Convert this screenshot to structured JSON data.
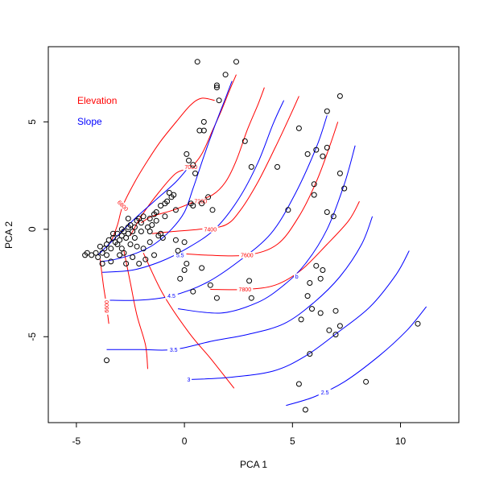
{
  "chart_data": {
    "type": "scatter",
    "title": "",
    "xlabel": "PCA 1",
    "ylabel": "PCA 2",
    "xlim": [
      -6.3,
      12.7
    ],
    "ylim": [
      -9,
      8.5
    ],
    "xticks": [
      -5,
      0,
      5,
      10
    ],
    "yticks": [
      -5,
      0,
      5
    ],
    "legend": {
      "position": "top-left",
      "entries": [
        {
          "label": "Elevation",
          "color": "#ff0000"
        },
        {
          "label": "Slope",
          "color": "#0000ff"
        }
      ]
    },
    "points": [
      [
        0.6,
        7.8
      ],
      [
        2.4,
        7.8
      ],
      [
        1.9,
        7.2
      ],
      [
        1.5,
        6.7
      ],
      [
        1.5,
        6.6
      ],
      [
        1.6,
        6.0
      ],
      [
        0.9,
        5.0
      ],
      [
        0.7,
        4.6
      ],
      [
        0.9,
        4.6
      ],
      [
        2.8,
        4.1
      ],
      [
        0.1,
        3.5
      ],
      [
        0.2,
        3.2
      ],
      [
        0.4,
        3.0
      ],
      [
        3.1,
        2.9
      ],
      [
        0.5,
        2.6
      ],
      [
        -0.5,
        1.6
      ],
      [
        0.4,
        1.1
      ],
      [
        0.8,
        1.2
      ],
      [
        1.1,
        1.5
      ],
      [
        1.3,
        0.9
      ],
      [
        -0.7,
        1.7
      ],
      [
        -0.9,
        1.2
      ],
      [
        -1.1,
        1.1
      ],
      [
        -0.9,
        0.6
      ],
      [
        -1.4,
        0.7
      ],
      [
        -0.4,
        0.9
      ],
      [
        -1.3,
        0.4
      ],
      [
        -1.5,
        0.2
      ],
      [
        -1.6,
        -0.1
      ],
      [
        -1.9,
        0.6
      ],
      [
        -2.0,
        0.3
      ],
      [
        -2.2,
        0.4
      ],
      [
        -2.3,
        0.1
      ],
      [
        -2.5,
        0.2
      ],
      [
        -2.6,
        0.1
      ],
      [
        -2.6,
        -0.2
      ],
      [
        -2.8,
        -0.1
      ],
      [
        -2.9,
        -0.3
      ],
      [
        -3.0,
        -0.5
      ],
      [
        -3.2,
        -0.6
      ],
      [
        -3.3,
        -0.4
      ],
      [
        -3.1,
        -0.7
      ],
      [
        -3.4,
        -0.9
      ],
      [
        -3.6,
        -0.7
      ],
      [
        -3.7,
        -0.9
      ],
      [
        -3.8,
        -1.1
      ],
      [
        -4.1,
        -1.1
      ],
      [
        -4.3,
        -1.2
      ],
      [
        -4.5,
        -1.1
      ],
      [
        -4.6,
        -1.2
      ],
      [
        -3.8,
        -1.6
      ],
      [
        -3.4,
        -1.5
      ],
      [
        -3.0,
        -1.2
      ],
      [
        -2.8,
        -1.1
      ],
      [
        -2.7,
        -1.6
      ],
      [
        -2.4,
        -1.3
      ],
      [
        -2.1,
        -1.6
      ],
      [
        -1.8,
        -1.4
      ],
      [
        -1.4,
        -1.2
      ],
      [
        -1.6,
        -0.6
      ],
      [
        -1.1,
        -0.2
      ],
      [
        -1.2,
        -0.3
      ],
      [
        -0.4,
        -0.5
      ],
      [
        0.0,
        -0.6
      ],
      [
        -0.3,
        -1.0
      ],
      [
        0.1,
        -1.6
      ],
      [
        0.0,
        -1.9
      ],
      [
        0.8,
        -1.8
      ],
      [
        -0.2,
        -2.3
      ],
      [
        0.4,
        -2.9
      ],
      [
        1.2,
        -2.6
      ],
      [
        1.5,
        -3.2
      ],
      [
        3.1,
        -3.2
      ],
      [
        3.0,
        -2.4
      ],
      [
        -3.6,
        -6.1
      ],
      [
        -2.1,
        0.5
      ],
      [
        -2.3,
        -0.4
      ],
      [
        -2.5,
        -0.7
      ],
      [
        -2.9,
        -0.9
      ],
      [
        -3.3,
        -0.2
      ],
      [
        -3.5,
        -0.5
      ],
      [
        -2.0,
        -0.1
      ],
      [
        -1.7,
        0.1
      ],
      [
        -2.2,
        -0.8
      ],
      [
        -1.9,
        -0.9
      ],
      [
        -4.0,
        -1.3
      ],
      [
        -3.9,
        -0.8
      ],
      [
        -2.7,
        -0.4
      ],
      [
        -2.4,
        -0.1
      ],
      [
        -2.9,
        0.0
      ],
      [
        -1.6,
        0.5
      ],
      [
        -2.6,
        0.5
      ],
      [
        -1.3,
        0.8
      ],
      [
        -0.8,
        1.3
      ],
      [
        -0.6,
        1.5
      ],
      [
        0.3,
        1.2
      ],
      [
        -3.1,
        -0.2
      ],
      [
        -3.6,
        -1.2
      ],
      [
        -1.0,
        -0.4
      ],
      [
        4.8,
        0.9
      ],
      [
        4.3,
        2.9
      ],
      [
        5.3,
        4.7
      ],
      [
        5.7,
        3.5
      ],
      [
        6.1,
        3.7
      ],
      [
        6.4,
        3.4
      ],
      [
        6.6,
        3.8
      ],
      [
        6.6,
        5.5
      ],
      [
        7.2,
        6.2
      ],
      [
        7.2,
        2.6
      ],
      [
        7.4,
        1.9
      ],
      [
        6.6,
        0.8
      ],
      [
        6.9,
        0.6
      ],
      [
        6.0,
        2.1
      ],
      [
        6.0,
        1.6
      ],
      [
        6.1,
        -1.7
      ],
      [
        6.4,
        -1.9
      ],
      [
        6.3,
        -2.3
      ],
      [
        5.8,
        -2.5
      ],
      [
        5.7,
        -3.1
      ],
      [
        5.4,
        -4.2
      ],
      [
        5.9,
        -3.7
      ],
      [
        6.3,
        -3.9
      ],
      [
        7.0,
        -3.8
      ],
      [
        7.2,
        -4.5
      ],
      [
        7.0,
        -4.9
      ],
      [
        6.7,
        -4.7
      ],
      [
        5.8,
        -5.8
      ],
      [
        5.3,
        -7.2
      ],
      [
        5.6,
        -8.4
      ],
      [
        8.4,
        -7.1
      ],
      [
        10.8,
        -4.4
      ]
    ],
    "series": [
      {
        "name": "Elevation",
        "color": "#ff0000",
        "contours": [
          {
            "level": "6600",
            "label_at": [
              -3.6,
              -3.6
            ],
            "label_angle": -90,
            "points": [
              [
                -3.9,
                -1.4
              ],
              [
                -3.75,
                -2.6
              ],
              [
                -3.6,
                -3.6
              ],
              [
                -3.5,
                -4.4
              ]
            ]
          },
          {
            "level": "6800",
            "label_at": [
              -2.85,
              1.1
            ],
            "label_angle": 45,
            "points": [
              [
                -3.4,
                -0.6
              ],
              [
                -3.1,
                0.2
              ],
              [
                -2.85,
                1.1
              ],
              [
                -2.3,
                2.2
              ],
              [
                -1.7,
                3.2
              ],
              [
                -1.1,
                4.1
              ],
              [
                -0.3,
                5.1
              ],
              [
                0.3,
                5.8
              ],
              [
                0.8,
                6.1
              ],
              [
                1.4,
                6.0
              ]
            ]
          },
          {
            "level": "",
            "label_at": null,
            "label_angle": 0,
            "points": [
              [
                -2.8,
                -1.0
              ],
              [
                -2.5,
                -2.5
              ],
              [
                -2.2,
                -4.0
              ],
              [
                -1.8,
                -5.4
              ],
              [
                -1.7,
                -6.5
              ]
            ]
          },
          {
            "level": "7000",
            "label_at": [
              0.3,
              2.9
            ],
            "label_angle": 0,
            "points": [
              [
                -2.5,
                -0.3
              ],
              [
                -2.0,
                0.6
              ],
              [
                -1.2,
                1.7
              ],
              [
                -0.4,
                2.6
              ],
              [
                0.3,
                2.9
              ],
              [
                0.8,
                3.5
              ],
              [
                1.3,
                4.6
              ],
              [
                1.7,
                5.5
              ],
              [
                2.1,
                6.5
              ],
              [
                2.4,
                7.2
              ]
            ]
          },
          {
            "level": "",
            "label_at": null,
            "label_angle": 0,
            "points": [
              [
                -1.9,
                -1.1
              ],
              [
                -1.0,
                -3.0
              ],
              [
                0.2,
                -4.8
              ],
              [
                1.2,
                -6.0
              ],
              [
                2.3,
                -7.4
              ]
            ]
          },
          {
            "level": "7200",
            "label_at": [
              0.75,
              1.3
            ],
            "label_angle": 0,
            "points": [
              [
                -2.0,
                0.3
              ],
              [
                -1.5,
                0.6
              ],
              [
                -0.5,
                0.9
              ],
              [
                0.5,
                1.3
              ],
              [
                1.3,
                1.6
              ],
              [
                1.9,
                2.2
              ],
              [
                2.4,
                3.2
              ],
              [
                2.9,
                4.6
              ],
              [
                3.4,
                5.8
              ],
              [
                3.7,
                6.6
              ]
            ]
          },
          {
            "level": "7400",
            "label_at": [
              1.2,
              0.0
            ],
            "label_angle": 0,
            "points": [
              [
                -1.5,
                -0.2
              ],
              [
                -0.5,
                -0.1
              ],
              [
                0.7,
                0.0
              ],
              [
                1.9,
                0.2
              ],
              [
                2.6,
                0.9
              ],
              [
                3.4,
                2.2
              ],
              [
                4.2,
                3.8
              ],
              [
                4.9,
                5.3
              ],
              [
                5.3,
                6.2
              ]
            ]
          },
          {
            "level": "7600",
            "label_at": [
              2.9,
              -1.2
            ],
            "label_angle": 0,
            "points": [
              [
                -0.5,
                -1.1
              ],
              [
                1.0,
                -1.2
              ],
              [
                2.9,
                -1.2
              ],
              [
                4.3,
                -0.7
              ],
              [
                5.3,
                0.6
              ],
              [
                6.1,
                2.2
              ],
              [
                6.7,
                3.8
              ],
              [
                7.1,
                5.0
              ]
            ]
          },
          {
            "level": "7800",
            "label_at": [
              2.8,
              -2.8
            ],
            "label_angle": 0,
            "points": [
              [
                1.2,
                -2.8
              ],
              [
                2.8,
                -2.8
              ],
              [
                4.2,
                -2.6
              ],
              [
                5.4,
                -1.9
              ],
              [
                6.6,
                -0.7
              ],
              [
                7.6,
                0.4
              ],
              [
                8.1,
                1.3
              ]
            ]
          }
        ]
      },
      {
        "name": "Slope",
        "color": "#0000ff",
        "contours": [
          {
            "level": "",
            "label_at": null,
            "label_angle": 0,
            "points": [
              [
                -4.0,
                -1.2
              ],
              [
                -3.3,
                -0.5
              ],
              [
                -2.4,
                0.4
              ],
              [
                -1.4,
                1.3
              ],
              [
                -0.4,
                2.2
              ],
              [
                0.2,
                2.9
              ]
            ]
          },
          {
            "level": "",
            "label_at": null,
            "label_angle": 0,
            "points": [
              [
                -3.9,
                -1.5
              ],
              [
                -3.2,
                -1.4
              ],
              [
                -2.2,
                -1.1
              ],
              [
                -1.4,
                -0.7
              ],
              [
                -0.6,
                0.0
              ],
              [
                0.0,
                0.8
              ],
              [
                0.4,
                1.9
              ],
              [
                0.9,
                3.4
              ],
              [
                1.4,
                4.8
              ],
              [
                1.9,
                6.1
              ],
              [
                2.2,
                6.9
              ]
            ]
          },
          {
            "level": "5.5",
            "label_at": [
              -0.2,
              -1.2
            ],
            "label_angle": 0,
            "points": [
              [
                -3.8,
                -2.0
              ],
              [
                -2.4,
                -1.9
              ],
              [
                -1.1,
                -1.5
              ],
              [
                0.1,
                -0.9
              ],
              [
                1.4,
                0.0
              ],
              [
                2.5,
                1.4
              ],
              [
                3.4,
                3.1
              ],
              [
                4.1,
                4.9
              ],
              [
                4.6,
                6.0
              ]
            ]
          },
          {
            "level": "4.5",
            "label_at": [
              -0.6,
              -3.1
            ],
            "label_angle": 0,
            "points": [
              [
                -3.6,
                -3.3
              ],
              [
                -2.1,
                -3.3
              ],
              [
                -0.6,
                -3.1
              ],
              [
                1.0,
                -2.5
              ],
              [
                2.5,
                -1.5
              ],
              [
                4.0,
                -0.2
              ],
              [
                5.1,
                1.6
              ],
              [
                6.1,
                3.8
              ],
              [
                6.6,
                5.3
              ]
            ]
          },
          {
            "level": "b",
            "label_at": [
              5.2,
              -2.2
            ],
            "label_angle": 0,
            "points": [
              [
                -0.3,
                -3.7
              ],
              [
                1.7,
                -3.9
              ],
              [
                3.4,
                -3.4
              ],
              [
                4.6,
                -2.6
              ],
              [
                5.6,
                -1.6
              ],
              [
                6.6,
                0.0
              ],
              [
                7.4,
                2.1
              ],
              [
                7.9,
                3.9
              ]
            ]
          },
          {
            "level": "3.5",
            "label_at": [
              -0.5,
              -5.6
            ],
            "label_angle": 0,
            "points": [
              [
                -3.6,
                -5.6
              ],
              [
                -2.0,
                -5.6
              ],
              [
                -0.5,
                -5.6
              ],
              [
                1.3,
                -5.2
              ],
              [
                2.9,
                -4.9
              ],
              [
                4.6,
                -4.4
              ],
              [
                6.0,
                -3.4
              ],
              [
                7.2,
                -2.2
              ],
              [
                8.2,
                -0.7
              ],
              [
                8.7,
                0.6
              ]
            ]
          },
          {
            "level": "3",
            "label_at": [
              0.2,
              -7.0
            ],
            "label_angle": 0,
            "points": [
              [
                0.1,
                -7.0
              ],
              [
                2.0,
                -6.9
              ],
              [
                4.1,
                -6.6
              ],
              [
                5.6,
                -5.9
              ],
              [
                7.1,
                -4.8
              ],
              [
                8.6,
                -3.6
              ],
              [
                9.8,
                -2.1
              ],
              [
                10.4,
                -1.0
              ]
            ]
          },
          {
            "level": "2.5",
            "label_at": [
              6.5,
              -7.6
            ],
            "label_angle": 0,
            "points": [
              [
                4.7,
                -8.2
              ],
              [
                6.0,
                -7.8
              ],
              [
                7.4,
                -7.1
              ],
              [
                9.0,
                -5.9
              ],
              [
                10.3,
                -4.7
              ],
              [
                11.2,
                -3.6
              ]
            ]
          }
        ]
      }
    ]
  }
}
